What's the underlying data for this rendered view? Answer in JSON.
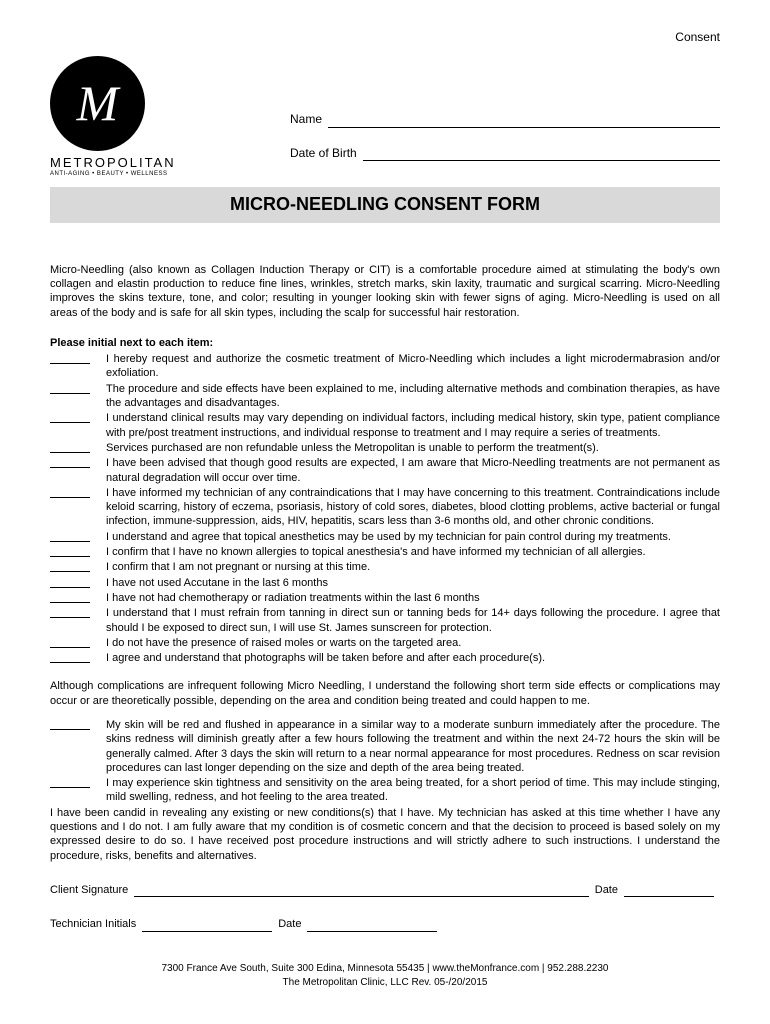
{
  "topRight": "Consent",
  "logo": {
    "letter": "M",
    "brand": "METROPOLITAN",
    "subline": "ANTI-AGING • BEAUTY • WELLNESS"
  },
  "fields": {
    "name_label": "Name",
    "dob_label": "Date of Birth"
  },
  "title": "MICRO-NEEDLING CONSENT FORM",
  "intro": "Micro-Needling (also known as Collagen Induction Therapy or CIT) is a comfortable procedure aimed at stimulating the body's own collagen and elastin production to reduce fine lines, wrinkles, stretch marks, skin laxity, traumatic and surgical scarring. Micro-Needling improves the skins texture, tone, and color; resulting in younger looking skin with fewer signs of aging. Micro-Needling is used on all areas of the body and is safe for all skin types, including the scalp for successful hair restoration.",
  "instruction": "Please initial next to each item:",
  "items": [
    "I hereby request and authorize the cosmetic treatment of Micro-Needling which includes a light microdermabrasion and/or exfoliation.",
    "The procedure and side effects have been explained to me, including alternative methods and combination therapies, as have the advantages and disadvantages.",
    "I understand clinical results may vary depending on individual factors, including medical history, skin type, patient compliance with pre/post treatment instructions, and individual response to treatment and I may require a series of treatments.",
    "Services purchased are non refundable unless the Metropolitan is unable to perform the treatment(s).",
    "I have been advised that though good results are expected, I am aware that Micro-Needling treatments are not permanent as natural degradation will occur over time.",
    "I have informed my technician of any contraindications that I may have concerning to this treatment. Contraindications include keloid scarring, history of eczema, psoriasis, history of cold sores, diabetes, blood clotting problems, active bacterial or fungal infection, immune-suppression, aids, HIV, hepatitis, scars less than 3-6 months old, and other chronic conditions.",
    "I understand and agree that topical anesthetics may be used by my technician for pain control during my treatments.",
    "I confirm that I have no known allergies to topical anesthesia's and have informed my technician of all allergies.",
    "I confirm that I am not pregnant or nursing at this time.",
    "I have not used Accutane in the last 6 months",
    "I have not had chemotherapy or radiation treatments within the last 6 months",
    "I understand that I must refrain from tanning in direct sun or tanning beds for 14+ days following the procedure.  I agree that should I be exposed to direct sun, I will use St. James sunscreen for protection.",
    "I do not have the presence of raised moles or warts on the targeted area.",
    "I agree and understand that photographs will be taken before and after each procedure(s)."
  ],
  "complications_intro": "Although complications are infrequent following Micro Needling, I understand the following short term side effects or complications may occur or are theoretically possible, depending on the area and condition being treated and could happen to me.",
  "complications": [
    "My skin will be red and flushed in appearance in a similar way to a moderate sunburn immediately after the procedure. The skins redness will diminish greatly after a few hours following the treatment and within the next 24-72 hours the skin will be generally calmed. After 3 days the skin will return to a near normal appearance for most procedures. Redness on scar revision procedures can last longer depending on the size and depth of the area being treated.",
    "I may experience skin tightness and sensitivity on the area being treated, for a short period of time. This may include stinging, mild swelling, redness, and hot feeling to the area treated."
  ],
  "closing": "I have been candid in revealing any existing or new conditions(s) that I have. My technician has asked at this time whether I have any questions and I do not. I am fully aware that my condition is of cosmetic concern and that the decision to proceed is based solely on my expressed desire to do so. I have received post procedure instructions and will strictly adhere to such instructions. I understand the   procedure, risks, benefits and alternatives.",
  "signature": {
    "client_label": "Client Signature",
    "date_label": "Date",
    "tech_label": "Technician Initials"
  },
  "footer": {
    "line1": "7300 France Ave South, Suite 300  Edina, Minnesota 55435 | www.theMonfrance.com | 952.288.2230",
    "line2": "The Metropolitan Clinic, LLC   Rev. 05-/20/2015"
  }
}
